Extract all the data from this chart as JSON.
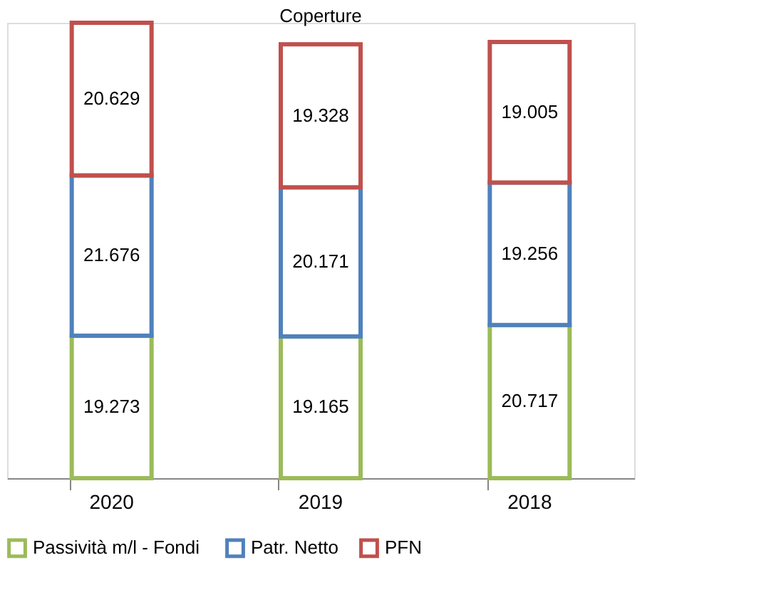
{
  "chart_data": {
    "type": "bar",
    "title": "Coperture",
    "stacked": true,
    "data_labels": true,
    "legend": "bottom",
    "grid": false,
    "categories": [
      "2020",
      "2019",
      "2018"
    ],
    "series": [
      {
        "name": "Passività  m/l - Fondi",
        "color": "#9bbb59",
        "values": [
          19.273,
          19.165,
          20.717
        ]
      },
      {
        "name": "Patr. Netto",
        "color": "#4f81bd",
        "values": [
          21.676,
          20.171,
          19.256
        ]
      },
      {
        "name": "PFN",
        "color": "#c0504d",
        "values": [
          20.629,
          19.328,
          19.005
        ]
      }
    ]
  }
}
